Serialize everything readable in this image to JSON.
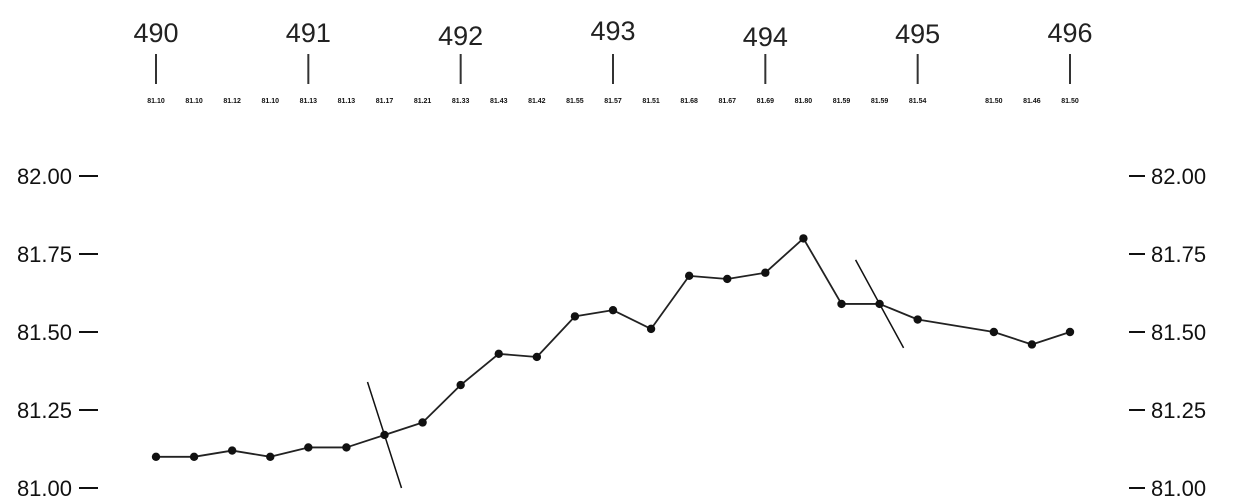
{
  "chart_data": {
    "type": "line",
    "title": "",
    "xlabel": "",
    "ylabel": "",
    "ylim": [
      81.0,
      82.0
    ],
    "grid": false,
    "legend": "none",
    "station_labels": [
      "490",
      "491",
      "492",
      "493",
      "494",
      "495",
      "496"
    ],
    "station_x": [
      490,
      491,
      492,
      493,
      494,
      495,
      496
    ],
    "y_tick_labels_left": [
      "82.00",
      "81.75",
      "81.50",
      "81.25",
      "81.00"
    ],
    "y_tick_labels_right": [
      "82.00",
      "81.75",
      "81.50",
      "81.25",
      "81.00"
    ],
    "y_tick_values": [
      82.0,
      81.75,
      81.5,
      81.25,
      81.0
    ],
    "series": [
      {
        "x": [
          490.0,
          490.25,
          490.5,
          490.75,
          491.0,
          491.25,
          491.5,
          491.75,
          492.0,
          492.25,
          492.5,
          492.75,
          493.0,
          493.25,
          493.5,
          493.75,
          494.0,
          494.25,
          494.5,
          494.75,
          495.0,
          495.5,
          495.75,
          496.0
        ],
        "values": [
          81.1,
          81.1,
          81.12,
          81.1,
          81.13,
          81.13,
          81.17,
          81.21,
          81.33,
          81.43,
          81.42,
          81.55,
          81.57,
          81.51,
          81.68,
          81.67,
          81.69,
          81.8,
          81.59,
          81.59,
          81.54,
          81.5,
          81.46,
          81.5
        ],
        "value_labels": [
          "81.10",
          "81.10",
          "81.12",
          "81.10",
          "81.13",
          "81.13",
          "81.17",
          "81.21",
          "81.33",
          "81.43",
          "81.42",
          "81.55",
          "81.57",
          "81.51",
          "81.68",
          "81.67",
          "81.69",
          "81.80",
          "81.59",
          "81.59",
          "81.54",
          "81.50",
          "81.46",
          "81.50"
        ]
      }
    ],
    "break_marks": [
      {
        "x": 491.5
      },
      {
        "x": 494.75
      }
    ],
    "colors": {
      "line": "#222222",
      "points": "#111111",
      "text": "#111111"
    }
  }
}
